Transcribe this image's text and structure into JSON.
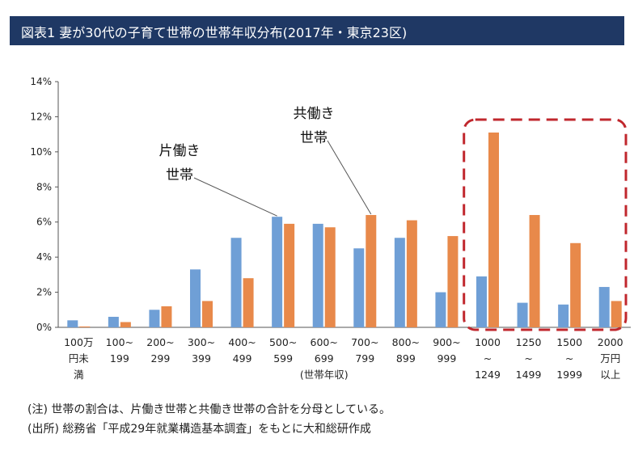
{
  "header": {
    "title": "図表1 妻が30代の子育て世帯の世帯年収分布(2017年・東京23区)"
  },
  "colors": {
    "title_bg": "#1f3864",
    "single": "#6f9fd6",
    "dual": "#e8894a",
    "highlight": "#c0272d"
  },
  "chart_data": {
    "type": "bar",
    "title": "",
    "xlabel": "(世帯年収)",
    "ylabel": "",
    "ylim": [
      0,
      14
    ],
    "yticks": [
      "0%",
      "2%",
      "4%",
      "6%",
      "8%",
      "10%",
      "12%",
      "14%"
    ],
    "categories": [
      [
        "100万",
        "円未",
        "満"
      ],
      [
        "100~",
        "199"
      ],
      [
        "200~",
        "299"
      ],
      [
        "300~",
        "399"
      ],
      [
        "400~",
        "499"
      ],
      [
        "500~",
        "599"
      ],
      [
        "600~",
        "699"
      ],
      [
        "700~",
        "799"
      ],
      [
        "800~",
        "899"
      ],
      [
        "900~",
        "999"
      ],
      [
        "1000",
        "~",
        "1249"
      ],
      [
        "1250",
        "~",
        "1499"
      ],
      [
        "1500",
        "~",
        "1999"
      ],
      [
        "2000",
        "万円",
        "以上"
      ]
    ],
    "series": [
      {
        "name": "片働き世帯",
        "values": [
          0.4,
          0.6,
          1.0,
          3.3,
          5.1,
          6.3,
          5.9,
          4.5,
          5.1,
          2.0,
          2.9,
          1.4,
          1.3,
          2.3
        ]
      },
      {
        "name": "共働き世帯",
        "values": [
          0.05,
          0.3,
          1.2,
          1.5,
          2.8,
          5.9,
          5.7,
          6.4,
          6.1,
          5.2,
          11.1,
          6.4,
          4.8,
          1.5
        ]
      }
    ],
    "annotations": [
      {
        "lines": [
          "片働き",
          "世帯"
        ],
        "series": 0,
        "category": 5
      },
      {
        "lines": [
          "共働き",
          "世帯"
        ],
        "series": 1,
        "category": 7
      }
    ],
    "highlight_categories": [
      10,
      13
    ],
    "legend": "none",
    "grid": false
  },
  "notes": {
    "line1": "(注) 世帯の割合は、片働き世帯と共働き世帯の合計を分母としている。",
    "line2": "(出所) 総務省「平成29年就業構造基本調査」をもとに大和総研作成"
  }
}
